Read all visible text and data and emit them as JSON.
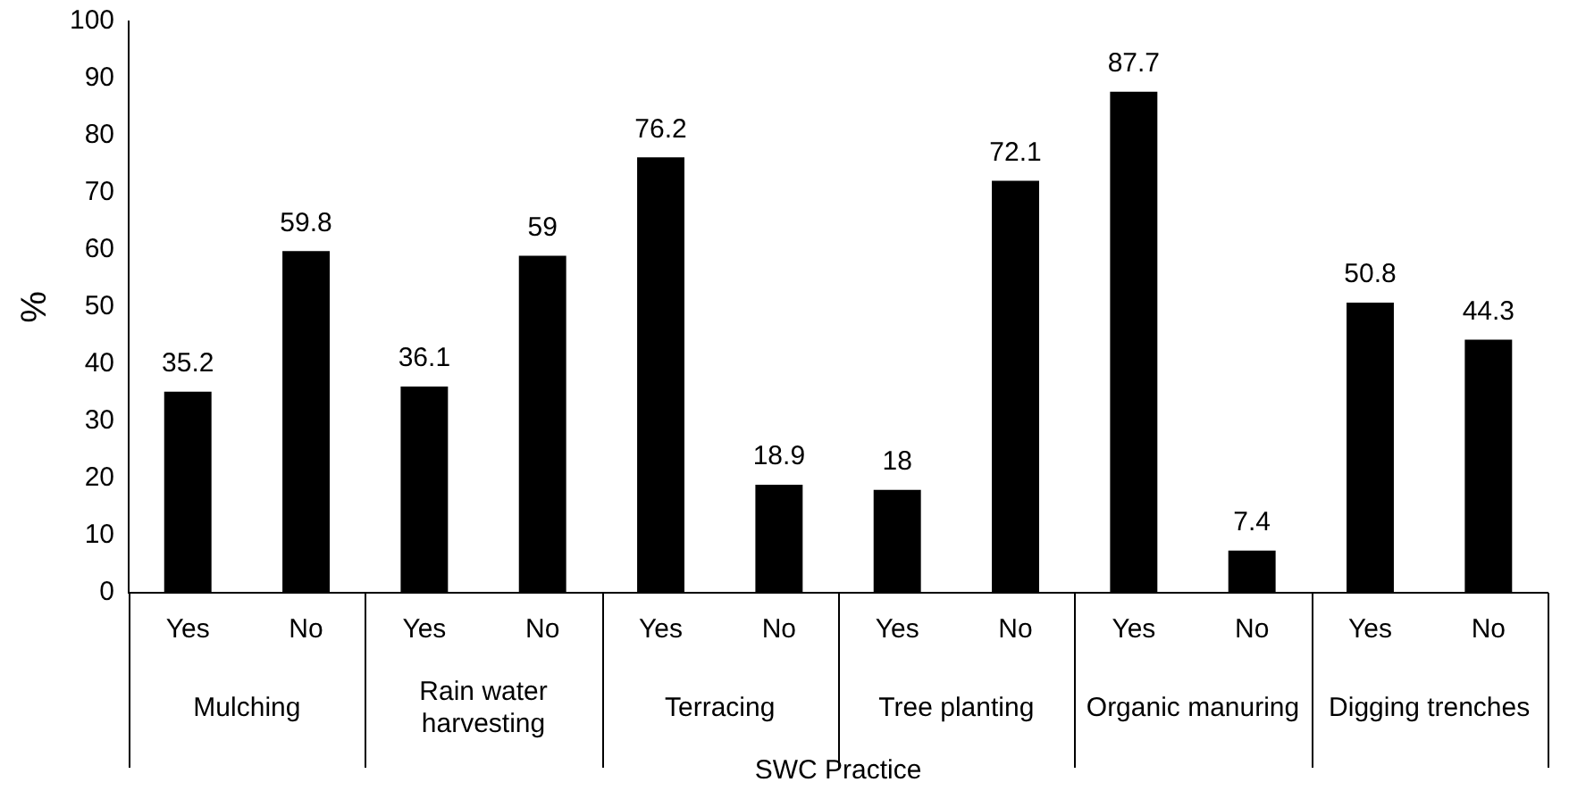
{
  "chart_data": {
    "type": "bar",
    "xlabel": "SWC Practice",
    "ylabel": "%",
    "categories": [
      "Yes",
      "No",
      "Yes",
      "No",
      "Yes",
      "No",
      "Yes",
      "No",
      "Yes",
      "No",
      "Yes",
      "No"
    ],
    "values": [
      35.2,
      59.8,
      36.1,
      59,
      76.2,
      18.9,
      18,
      72.1,
      87.7,
      7.4,
      50.8,
      44.3
    ],
    "color": "#000000",
    "data_labels": true,
    "grid": false,
    "legend": false,
    "ylim": [
      0,
      100
    ],
    "yticks": [
      0,
      10,
      20,
      30,
      40,
      50,
      60,
      70,
      80,
      90,
      100
    ],
    "annotations": [
      "Mulching",
      "Rain water harvesting",
      "Terracing",
      "Tree planting",
      "Organic manuring",
      "Digging trenches"
    ]
  }
}
